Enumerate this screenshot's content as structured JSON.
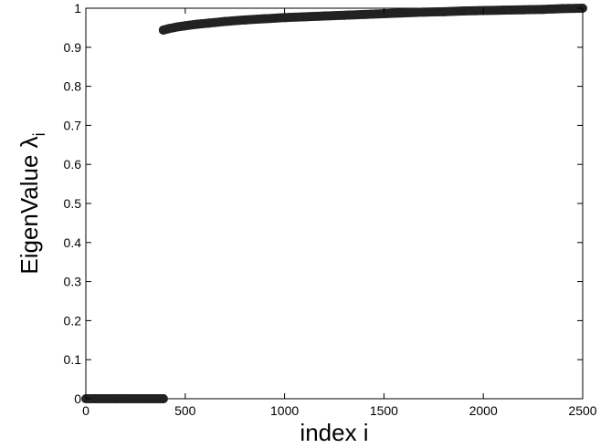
{
  "chart_data": {
    "type": "scatter",
    "title": "",
    "xlabel": "index i",
    "ylabel": {
      "main": "EigenValue λ",
      "subscript": "i"
    },
    "xlim": [
      0,
      2500
    ],
    "ylim": [
      0,
      1
    ],
    "grid": false,
    "legend": "none",
    "x_ticks": [
      {
        "value": 0,
        "label": "0"
      },
      {
        "value": 500,
        "label": "500"
      },
      {
        "value": 1000,
        "label": "1000"
      },
      {
        "value": 1500,
        "label": "1500"
      },
      {
        "value": 2000,
        "label": "2000"
      },
      {
        "value": 2500,
        "label": "2500"
      }
    ],
    "y_ticks": [
      {
        "value": 0,
        "label": "0"
      },
      {
        "value": 0.1,
        "label": "0.1"
      },
      {
        "value": 0.2,
        "label": "0.2"
      },
      {
        "value": 0.3,
        "label": "0.3"
      },
      {
        "value": 0.4,
        "label": "0.4"
      },
      {
        "value": 0.5,
        "label": "0.5"
      },
      {
        "value": 0.6,
        "label": "0.6"
      },
      {
        "value": 0.7,
        "label": "0.7"
      },
      {
        "value": 0.8,
        "label": "0.8"
      },
      {
        "value": 0.9,
        "label": "0.9"
      },
      {
        "value": 1,
        "label": "1"
      }
    ],
    "series": [
      {
        "color": "#222222",
        "marker": "filled-circle",
        "points": [
          [
            0,
            0
          ],
          [
            50,
            0
          ],
          [
            100,
            0
          ],
          [
            150,
            0
          ],
          [
            200,
            0
          ],
          [
            250,
            0
          ],
          [
            300,
            0
          ],
          [
            350,
            0
          ],
          [
            390,
            0
          ],
          [
            390,
            0.944
          ],
          [
            420,
            0.948
          ],
          [
            460,
            0.952
          ],
          [
            500,
            0.955
          ],
          [
            560,
            0.959
          ],
          [
            620,
            0.962
          ],
          [
            700,
            0.966
          ],
          [
            800,
            0.97
          ],
          [
            900,
            0.973
          ],
          [
            1000,
            0.976
          ],
          [
            1100,
            0.978
          ],
          [
            1200,
            0.98
          ],
          [
            1300,
            0.982
          ],
          [
            1400,
            0.984
          ],
          [
            1500,
            0.986
          ],
          [
            1600,
            0.988
          ],
          [
            1700,
            0.99
          ],
          [
            1800,
            0.991
          ],
          [
            1900,
            0.993
          ],
          [
            2000,
            0.994
          ],
          [
            2100,
            0.995
          ],
          [
            2200,
            0.996
          ],
          [
            2300,
            0.997
          ],
          [
            2400,
            0.999
          ],
          [
            2500,
            1.0
          ]
        ]
      }
    ]
  }
}
